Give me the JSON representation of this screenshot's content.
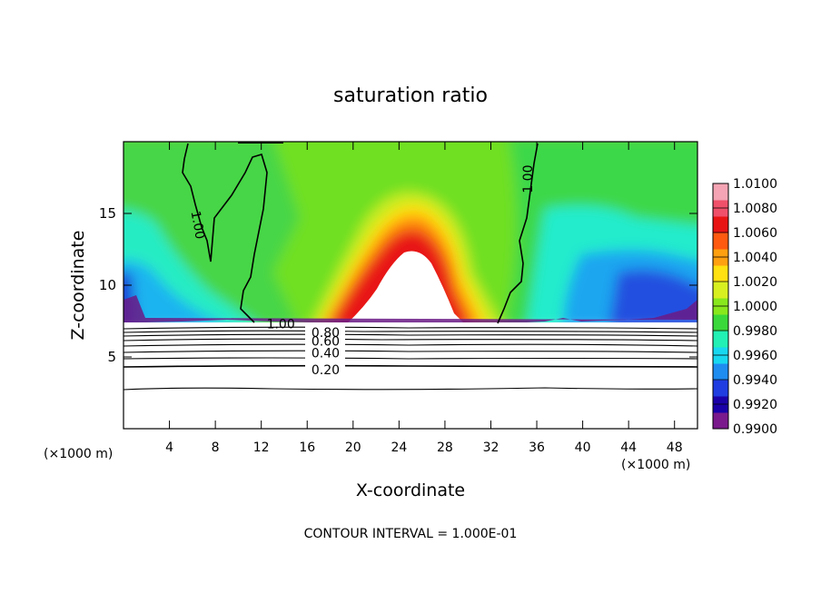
{
  "chart_data": {
    "type": "heatmap",
    "title": "saturation ratio",
    "xlabel": "X-coordinate",
    "ylabel": "Z-coordinate",
    "x_unit_left": "(×1000 m)",
    "x_unit_right": "(×1000 m)",
    "xlim": [
      0,
      50
    ],
    "ylim": [
      0,
      20
    ],
    "x_ticks": [
      4,
      8,
      12,
      16,
      20,
      24,
      28,
      32,
      36,
      40,
      44,
      48
    ],
    "y_ticks": [
      5,
      10,
      15
    ],
    "colorbar": {
      "labels": [
        "1.0100",
        "1.0080",
        "1.0060",
        "1.0040",
        "1.0020",
        "1.0000",
        "0.9980",
        "0.9960",
        "0.9940",
        "0.9920",
        "0.9900"
      ],
      "min": 0.99,
      "max": 1.01,
      "colors": [
        "#7a1a8c",
        "#1a00a8",
        "#1f3de0",
        "#1f8cf0",
        "#18d8f0",
        "#22f0b4",
        "#3ad83a",
        "#88e81c",
        "#d8f020",
        "#ffe010",
        "#ffa010",
        "#ff5a10",
        "#e81414",
        "#f0506a",
        "#f4a4b4"
      ]
    },
    "contour_labels": [
      {
        "text": "1.00",
        "x": 6.5,
        "z": 14.2,
        "rotate": 80
      },
      {
        "text": "1.00",
        "x": 13.7,
        "z": 7.3,
        "rotate": 0
      },
      {
        "text": "1.00",
        "x": 35.2,
        "z": 17.4,
        "rotate": -90
      },
      {
        "text": "0.80",
        "x": 17.6,
        "z": 6.7,
        "rotate": 0
      },
      {
        "text": "0.60",
        "x": 17.6,
        "z": 6.1,
        "rotate": 0
      },
      {
        "text": "0.40",
        "x": 17.6,
        "z": 5.3,
        "rotate": 0
      },
      {
        "text": "0.20",
        "x": 17.6,
        "z": 4.1,
        "rotate": 0
      }
    ],
    "footer_note": "CONTOUR INTERVAL = 1.000E-01"
  }
}
